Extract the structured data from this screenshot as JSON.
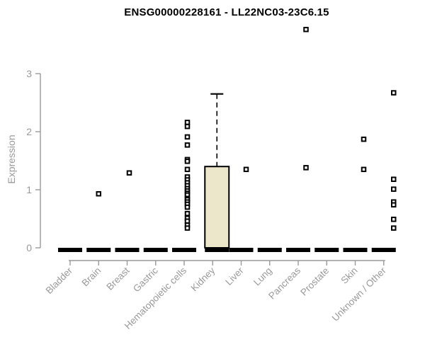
{
  "chart_data": {
    "type": "boxplot",
    "title": "ENSG00000228161 - LL22NC03-23C6.15",
    "ylabel": "Expression",
    "xlabel": "",
    "ylim": [
      0,
      3
    ],
    "yticks": [
      0,
      1,
      2,
      3
    ],
    "grid": false,
    "legend": false,
    "categories": [
      "Bladder",
      "Brain",
      "Breast",
      "Gastric",
      "Hematopoietic cells",
      "Kidney",
      "Liver",
      "Lung",
      "Pancreas",
      "Prostate",
      "Skin",
      "Unknown / Other"
    ],
    "boxes": [
      {
        "category": "Bladder",
        "q1": 0,
        "median": 0,
        "q3": 0,
        "whisker_low": 0,
        "whisker_high": 0,
        "outliers": []
      },
      {
        "category": "Brain",
        "q1": 0,
        "median": 0,
        "q3": 0,
        "whisker_low": 0,
        "whisker_high": 0,
        "outliers": [
          0.93
        ]
      },
      {
        "category": "Breast",
        "q1": 0,
        "median": 0,
        "q3": 0,
        "whisker_low": 0,
        "whisker_high": 0,
        "outliers": [
          1.29
        ]
      },
      {
        "category": "Gastric",
        "q1": 0,
        "median": 0,
        "q3": 0,
        "whisker_low": 0,
        "whisker_high": 0,
        "outliers": []
      },
      {
        "category": "Hematopoietic cells",
        "q1": 0,
        "median": 0,
        "q3": 0,
        "whisker_low": 0,
        "whisker_high": 0,
        "outliers": [
          2.16,
          2.09,
          1.91,
          1.77,
          1.52,
          1.49,
          1.35,
          1.22,
          1.17,
          1.12,
          1.07,
          1.02,
          0.98,
          0.94,
          0.91,
          0.85,
          0.83,
          0.79,
          0.75,
          0.7,
          0.59,
          0.51,
          0.46,
          0.39,
          0.34
        ]
      },
      {
        "category": "Kidney",
        "q1": 0,
        "median": 0,
        "q3": 1.4,
        "whisker_low": 0,
        "whisker_high": 2.65,
        "outliers": []
      },
      {
        "category": "Liver",
        "q1": 0,
        "median": 0,
        "q3": 0,
        "whisker_low": 0,
        "whisker_high": 0,
        "outliers": [
          1.35
        ]
      },
      {
        "category": "Lung",
        "q1": 0,
        "median": 0,
        "q3": 0,
        "whisker_low": 0,
        "whisker_high": 0,
        "outliers": []
      },
      {
        "category": "Pancreas",
        "q1": 0,
        "median": 0,
        "q3": 0,
        "whisker_low": 0,
        "whisker_high": 0,
        "outliers": [
          3.76,
          1.38
        ]
      },
      {
        "category": "Prostate",
        "q1": 0,
        "median": 0,
        "q3": 0,
        "whisker_low": 0,
        "whisker_high": 0,
        "outliers": []
      },
      {
        "category": "Skin",
        "q1": 0,
        "median": 0,
        "q3": 0,
        "whisker_low": 0,
        "whisker_high": 0,
        "outliers": [
          1.87,
          1.35
        ]
      },
      {
        "category": "Unknown / Other",
        "q1": 0,
        "median": 0,
        "q3": 0,
        "whisker_low": 0,
        "whisker_high": 0,
        "outliers": [
          2.67,
          1.18,
          1.01,
          0.79,
          0.74,
          0.49,
          0.34
        ]
      }
    ],
    "colors": {
      "box_fill": "#ece7ca",
      "box_border": "#000000",
      "median": "#000000",
      "outlier": "#000000",
      "axis": "#999999",
      "title": "#000000",
      "background": "#ffffff"
    }
  }
}
